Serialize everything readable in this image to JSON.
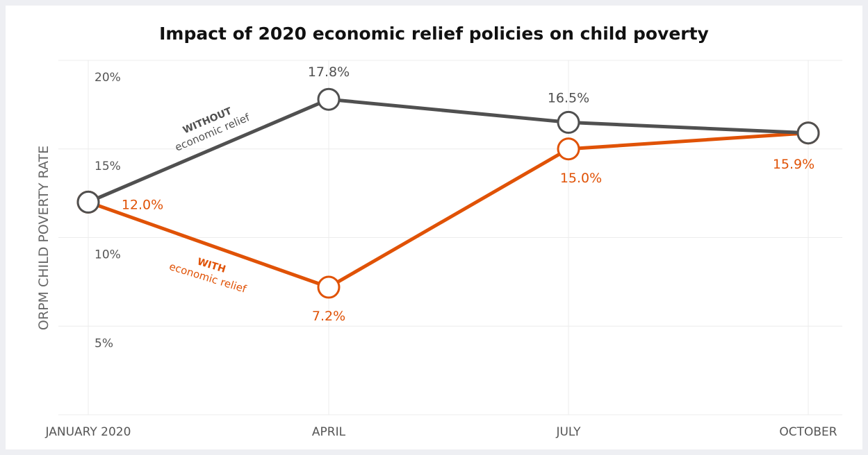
{
  "chart_data": {
    "type": "line",
    "title": "Impact of 2020 economic relief policies on child poverty",
    "xlabel": "",
    "ylabel": "ORPM CHILD POVERTY RATE",
    "categories": [
      "JANUARY 2020",
      "APRIL",
      "JULY",
      "OCTOBER"
    ],
    "yticks": [
      "5%",
      "10%",
      "15%",
      "20%"
    ],
    "ylim": [
      0,
      20
    ],
    "grid": true,
    "series": [
      {
        "name": "WITHOUT economic relief",
        "label_bold": "WITHOUT",
        "label_sub": "economic relief",
        "color": "#505050",
        "values": [
          12.0,
          17.8,
          16.5,
          15.9
        ],
        "point_labels": [
          "",
          "17.8%",
          "16.5%",
          ""
        ]
      },
      {
        "name": "WITH economic relief",
        "label_bold": "WITH",
        "label_sub": "economic relief",
        "color": "#e05206",
        "values": [
          12.0,
          7.2,
          15.0,
          15.9
        ],
        "point_labels": [
          "12.0%",
          "7.2%",
          "15.0%",
          "15.9%"
        ]
      }
    ]
  }
}
